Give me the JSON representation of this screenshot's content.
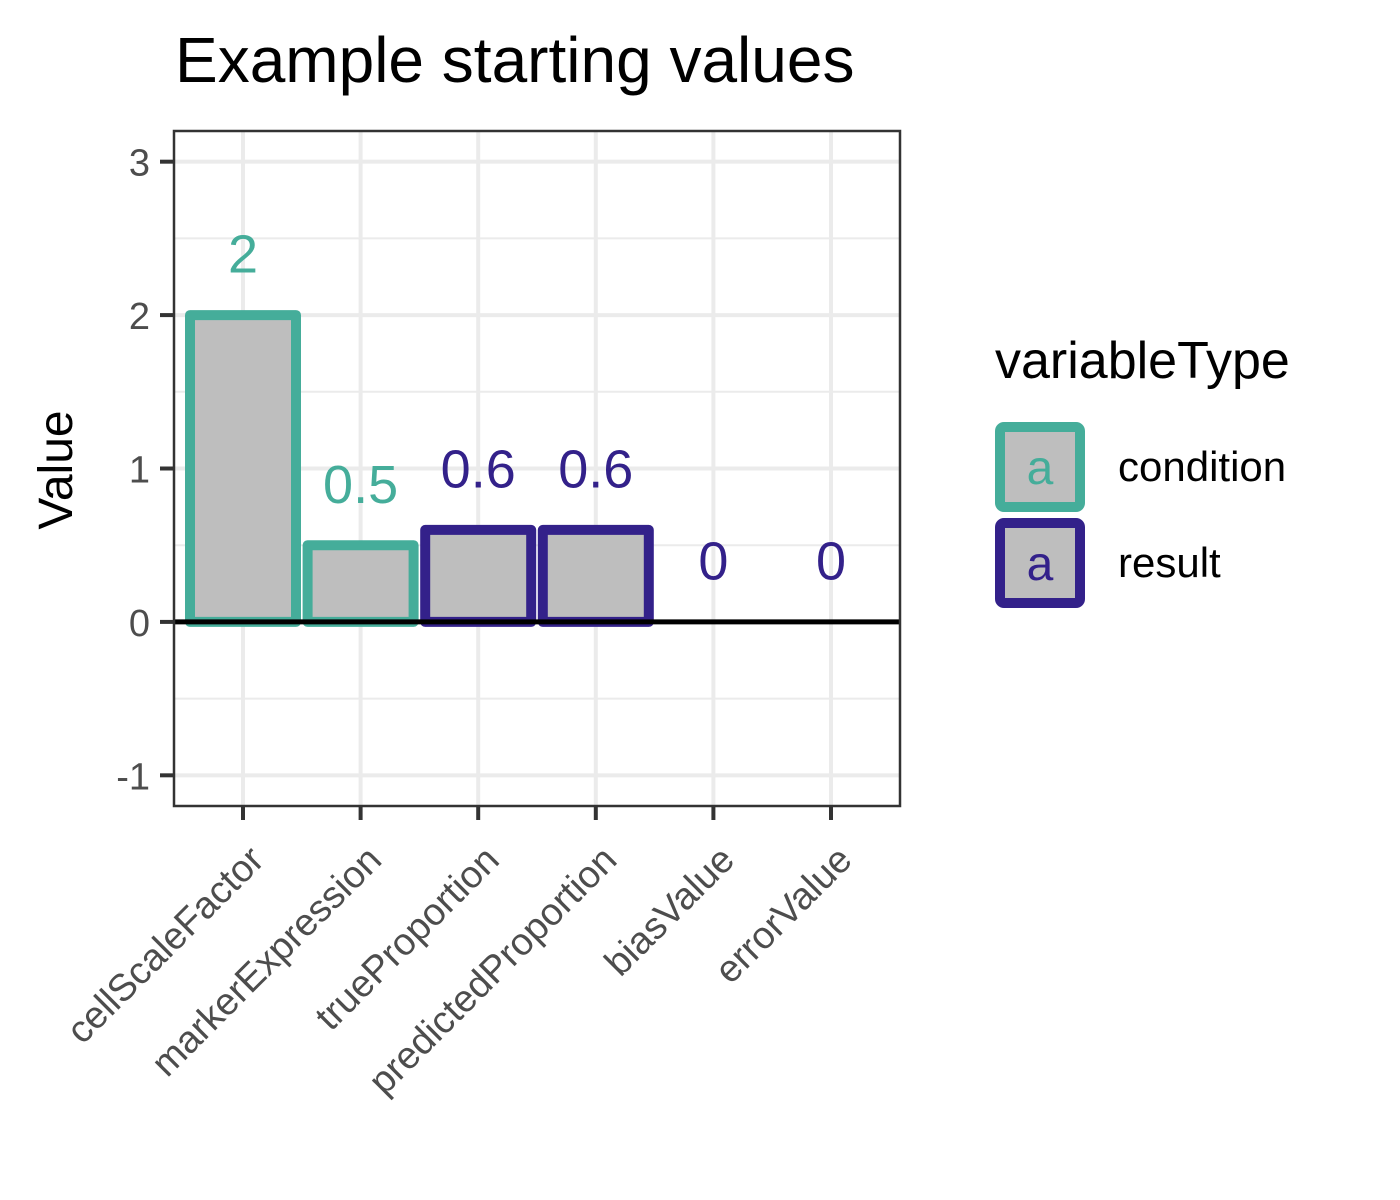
{
  "chart_data": {
    "type": "bar",
    "title": "Example starting values",
    "xlabel": "",
    "ylabel": "Value",
    "categories": [
      "cellScaleFactor",
      "markerExpression",
      "trueProportion",
      "predictedProportion",
      "biasValue",
      "errorValue"
    ],
    "values": [
      2,
      0.5,
      0.6,
      0.6,
      0,
      0
    ],
    "data_labels": [
      "2",
      "0.5",
      "0.6",
      "0.6",
      "0",
      "0"
    ],
    "groups": [
      "condition",
      "condition",
      "result",
      "result",
      "result",
      "result"
    ],
    "ylim": [
      -1.2,
      3.2
    ],
    "yticks": [
      -1,
      0,
      1,
      2,
      3
    ],
    "ytick_labels": [
      "-1",
      "0",
      "1",
      "2",
      "3"
    ],
    "grid": true,
    "legend": {
      "title": "variableType",
      "position": "right",
      "key_glyph": "a",
      "entries": [
        {
          "name": "condition",
          "color": "#45ad9a"
        },
        {
          "name": "result",
          "color": "#33218a"
        }
      ]
    },
    "colors": {
      "condition": "#45ad9a",
      "result": "#33218a",
      "bar_fill": "#bebebe",
      "zero_line": "#000000"
    }
  }
}
